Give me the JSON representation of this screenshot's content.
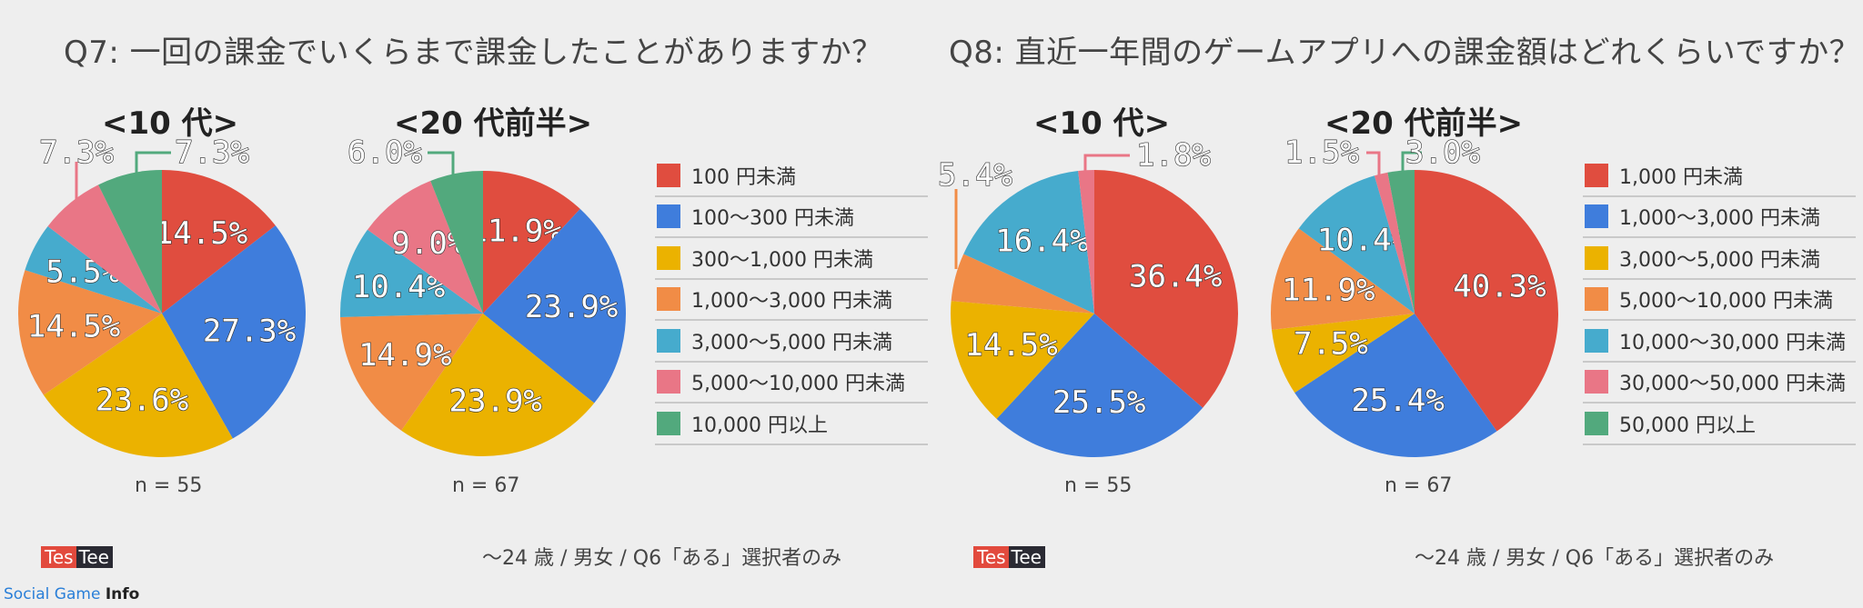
{
  "charts": [
    {
      "title": "Q7: 一回の課金でいくらまで課金したことがありますか？",
      "footnote": "〜24 歳 / 男女 / Q6「ある」選択者のみ",
      "logo": {
        "part1": "Tes",
        "part2": "Tee"
      },
      "legend": [
        {
          "label": "100 円未満",
          "color": "#e04d3f"
        },
        {
          "label": "100〜300 円未満",
          "color": "#3f7ddc"
        },
        {
          "label": "300〜1,000 円未満",
          "color": "#ebb200"
        },
        {
          "label": "1,000〜3,000 円未満",
          "color": "#f18c46"
        },
        {
          "label": "3,000〜5,000 円未満",
          "color": "#46abcd"
        },
        {
          "label": "5,000〜10,000 円未満",
          "color": "#e97686"
        },
        {
          "label": "10,000 円以上",
          "color": "#52a97d"
        }
      ]
    },
    {
      "title": "Q8: 直近一年間のゲームアプリへの課金額はどれくらいですか？",
      "footnote": "〜24 歳 / 男女 / Q6「ある」選択者のみ",
      "logo": {
        "part1": "Tes",
        "part2": "Tee"
      },
      "legend": [
        {
          "label": "1,000 円未満",
          "color": "#e04d3f"
        },
        {
          "label": "1,000〜3,000 円未満",
          "color": "#3f7ddc"
        },
        {
          "label": "3,000〜5,000 円未満",
          "color": "#ebb200"
        },
        {
          "label": "5,000〜10,000 円未満",
          "color": "#f18c46"
        },
        {
          "label": "10,000〜30,000 円未満",
          "color": "#46abcd"
        },
        {
          "label": "30,000〜50,000 円未満",
          "color": "#e97686"
        },
        {
          "label": "50,000 円以上",
          "color": "#52a97d"
        }
      ]
    }
  ],
  "chart_data": [
    {
      "type": "pie",
      "title": "<10 代>",
      "n_label": "n = 55",
      "categories": [
        "100 円未満",
        "100〜300 円未満",
        "300〜1,000 円未満",
        "1,000〜3,000 円未満",
        "3,000〜5,000 円未満",
        "5,000〜10,000 円未満",
        "10,000 円以上"
      ],
      "values": [
        14.5,
        27.3,
        23.6,
        14.5,
        5.5,
        7.3,
        7.3
      ],
      "labels": [
        "14.5%",
        "27.3%",
        "23.6%",
        "14.5%",
        "5.5%",
        "7.3%",
        "7.3%"
      ]
    },
    {
      "type": "pie",
      "title": "<20 代前半>",
      "n_label": "n = 67",
      "categories": [
        "100 円未満",
        "100〜300 円未満",
        "300〜1,000 円未満",
        "1,000〜3,000 円未満",
        "3,000〜5,000 円未満",
        "5,000〜10,000 円未満",
        "10,000 円以上"
      ],
      "values": [
        11.9,
        23.9,
        23.9,
        14.9,
        10.4,
        9.0,
        6.0
      ],
      "labels": [
        "11.9%",
        "23.9%",
        "23.9%",
        "14.9%",
        "10.4%",
        "9.0%",
        "6.0%"
      ]
    },
    {
      "type": "pie",
      "title": "<10 代>",
      "n_label": "n = 55",
      "categories": [
        "1,000 円未満",
        "1,000〜3,000 円未満",
        "3,000〜5,000 円未満",
        "5,000〜10,000 円未満",
        "10,000〜30,000 円未満",
        "30,000〜50,000 円未満",
        "50,000 円以上"
      ],
      "values": [
        36.4,
        25.5,
        14.5,
        5.4,
        16.4,
        1.8,
        0
      ],
      "labels": [
        "36.4%",
        "25.5%",
        "14.5%",
        "5.4%",
        "16.4%",
        "1.8%",
        ""
      ]
    },
    {
      "type": "pie",
      "title": "<20 代前半>",
      "n_label": "n = 67",
      "categories": [
        "1,000 円未満",
        "1,000〜3,000 円未満",
        "3,000〜5,000 円未満",
        "5,000〜10,000 円未満",
        "10,000〜30,000 円未満",
        "30,000〜50,000 円未満",
        "50,000 円以上"
      ],
      "values": [
        40.3,
        25.4,
        7.5,
        11.9,
        10.4,
        1.5,
        3.0
      ],
      "labels": [
        "40.3%",
        "25.4%",
        "7.5%",
        "11.9%",
        "10.4%",
        "1.5%",
        "3.0%"
      ]
    }
  ],
  "watermark": {
    "part1": "Social Game ",
    "part2": "Info"
  }
}
